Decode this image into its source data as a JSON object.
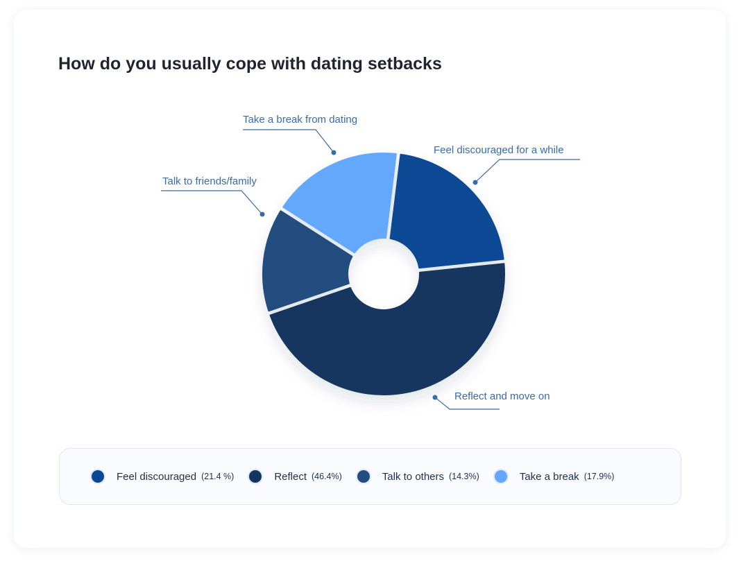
{
  "chart_data": {
    "type": "pie",
    "title": "How do you usually cope with dating setbacks",
    "donut": true,
    "slices": [
      {
        "label": "Feel discouraged for a while",
        "legend": "Feel discouraged",
        "legend_value": "(21.4 %)",
        "value": 21.4,
        "color": "#0b4894"
      },
      {
        "label": "Reflect and move on",
        "legend": "Reflect",
        "legend_value": "(46.4%)",
        "value": 46.4,
        "color": "#14355f"
      },
      {
        "label": "Talk to friends/family",
        "legend": "Talk to others",
        "legend_value": "(14.3%)",
        "value": 14.3,
        "color": "#234d7e"
      },
      {
        "label": "Take a break from dating",
        "legend": "Take a break",
        "legend_value": "(17.9%)",
        "value": 17.9,
        "color": "#64a8fb"
      }
    ],
    "legend_placement": "bottom"
  }
}
